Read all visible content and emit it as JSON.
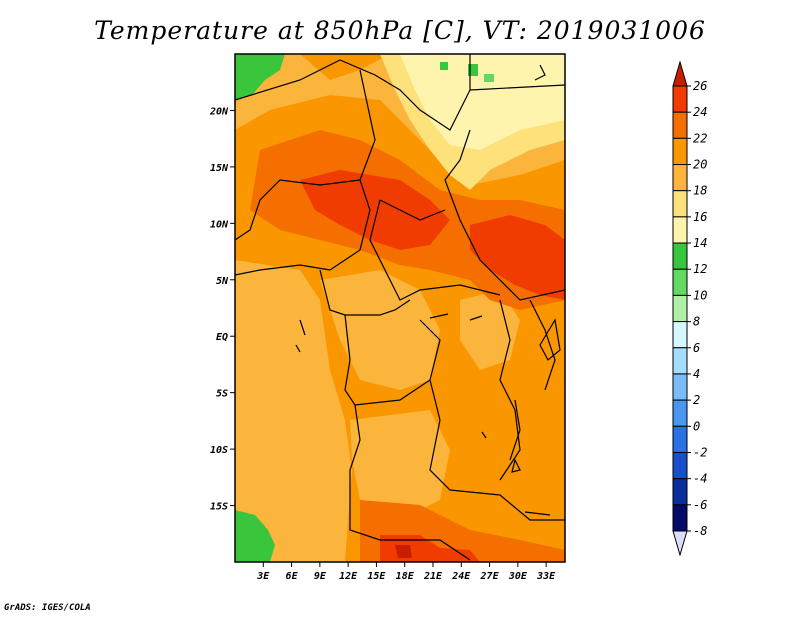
{
  "title": "Temperature at 850hPa [C], VT: 2019031006",
  "footer": "GrADS: IGES/COLA",
  "map": {
    "lon_range": [
      0,
      35
    ],
    "lat_range": [
      -20,
      25
    ],
    "lon_ticks": [
      "3E",
      "6E",
      "9E",
      "12E",
      "15E",
      "18E",
      "21E",
      "24E",
      "27E",
      "30E",
      "33E"
    ],
    "lon_values": [
      3,
      6,
      9,
      12,
      15,
      18,
      21,
      24,
      27,
      30,
      33
    ],
    "lat_ticks": [
      "20N",
      "15N",
      "10N",
      "5N",
      "EQ",
      "5S",
      "10S",
      "15S"
    ],
    "lat_values": [
      20,
      15,
      10,
      5,
      0,
      -5,
      -10,
      -15
    ]
  },
  "colorbar": {
    "labels": [
      "26",
      "24",
      "22",
      "20",
      "18",
      "16",
      "14",
      "12",
      "10",
      "8",
      "6",
      "4",
      "2",
      "0",
      "-2",
      "-4",
      "-6",
      "-8"
    ],
    "colors": [
      "#c81e00",
      "#f03c00",
      "#f56e00",
      "#f99600",
      "#fbb43c",
      "#fde27c",
      "#fff4ae",
      "#39c63c",
      "#62d960",
      "#aef0a4",
      "#d8f8ff",
      "#a6dcfd",
      "#78bcfa",
      "#4a96f0",
      "#2a72e4",
      "#1850cc",
      "#0a2e9e",
      "#040a68",
      "#dcdcf8"
    ]
  }
}
